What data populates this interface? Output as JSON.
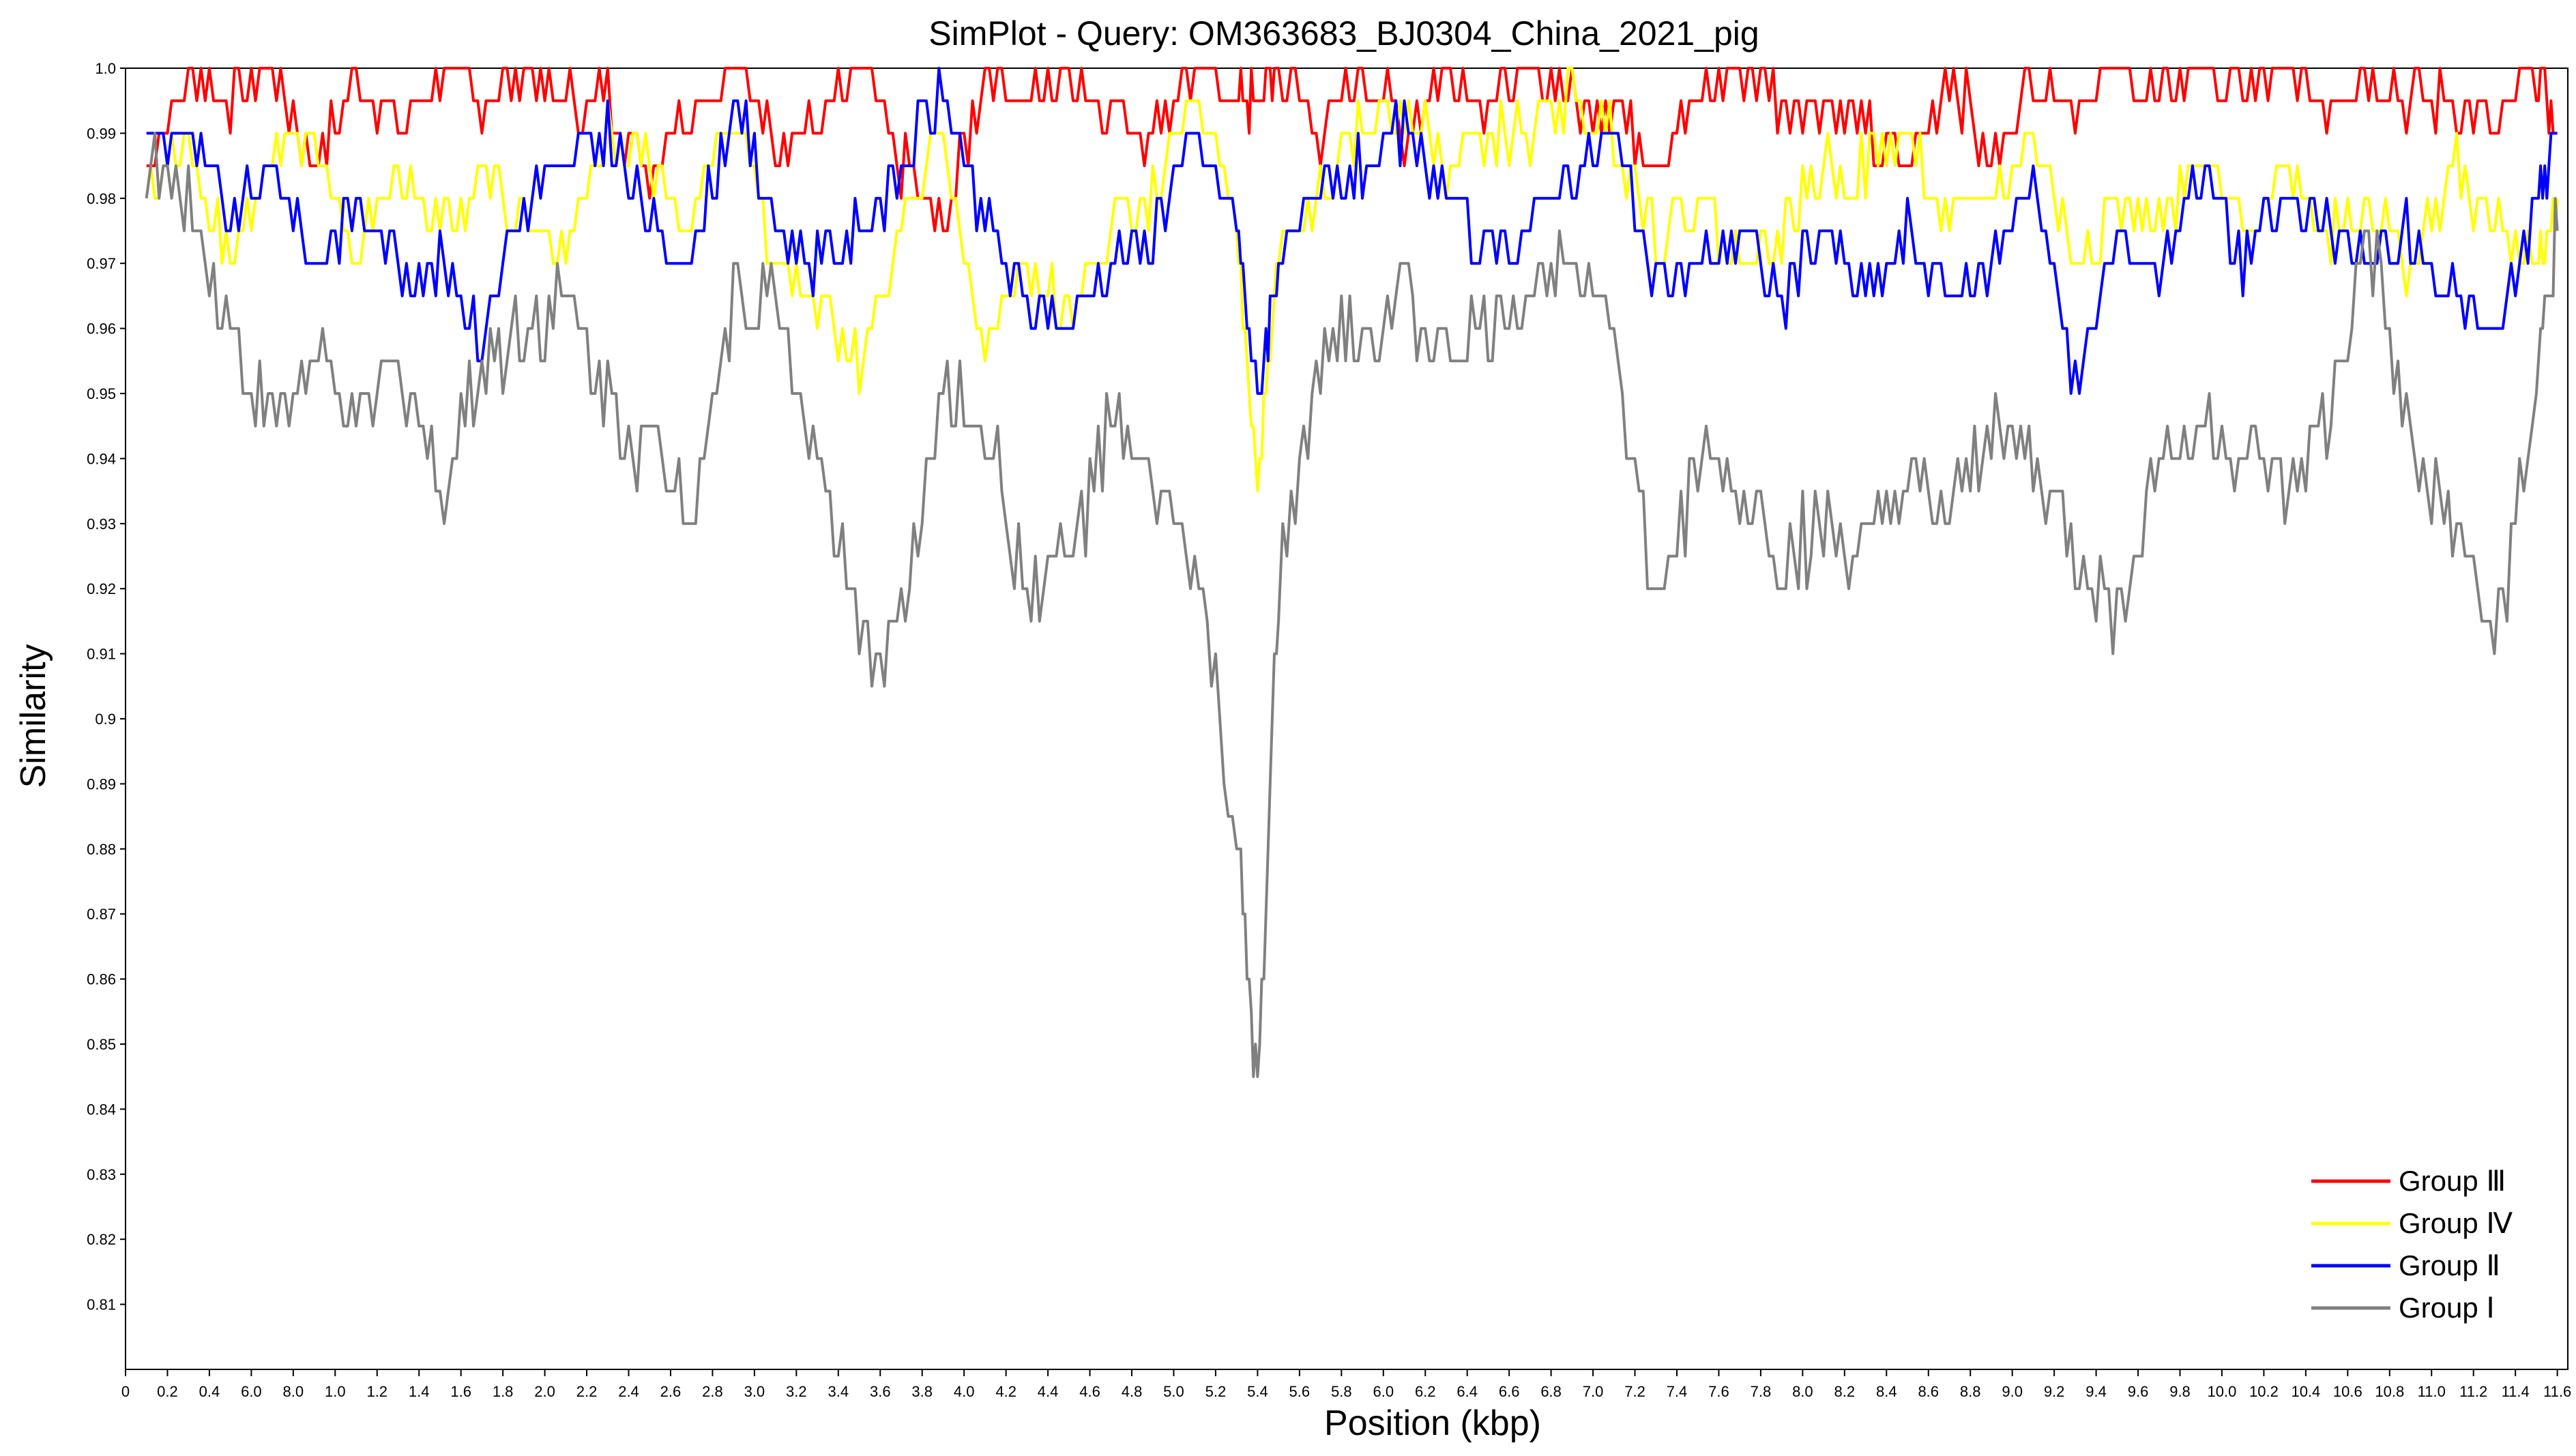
{
  "chart_data": {
    "type": "line",
    "title": "SimPlot - Query: OM363683_BJ0304_China_2021_pig",
    "xlabel": "Position (kbp)",
    "ylabel": "Similarity",
    "xlim": [
      0,
      11.65
    ],
    "ylim": [
      0.8,
      1.0
    ],
    "grid": false,
    "legend_position": "bottom-right",
    "x_tick_labels": [
      "0",
      "0.2",
      "0.4",
      "6.0",
      "8.0",
      "1.0",
      "1.2",
      "1.4",
      "1.6",
      "1.8",
      "2.0",
      "2.2",
      "2.4",
      "2.6",
      "2.8",
      "3.0",
      "3.2",
      "3.4",
      "3.6",
      "3.8",
      "4.0",
      "4.2",
      "4.4",
      "4.6",
      "4.8",
      "5.0",
      "5.2",
      "5.4",
      "5.6",
      "5.8",
      "6.0",
      "6.2",
      "6.4",
      "6.6",
      "6.8",
      "7.0",
      "7.2",
      "7.4",
      "7.6",
      "7.8",
      "8.0",
      "8.2",
      "8.4",
      "8.6",
      "8.8",
      "9.0",
      "9.2",
      "9.4",
      "9.6",
      "9.8",
      "10.0",
      "10.2",
      "10.4",
      "10.6",
      "10.8",
      "11.0",
      "11.2",
      "11.4",
      "11.6"
    ],
    "y_tick_labels": [
      "0.81",
      "0.82",
      "0.83",
      "0.84",
      "0.85",
      "0.86",
      "0.87",
      "0.88",
      "0.89",
      "0.9",
      "0.91",
      "0.92",
      "0.93",
      "0.94",
      "0.95",
      "0.96",
      "0.97",
      "0.98",
      "0.99",
      "1.0"
    ],
    "x": [
      0.1,
      0.3,
      0.5,
      0.7,
      0.9,
      1.1,
      1.3,
      1.5,
      1.7,
      1.9,
      2.1,
      2.3,
      2.5,
      2.7,
      2.9,
      3.1,
      3.3,
      3.5,
      3.7,
      3.9,
      4.1,
      4.3,
      4.5,
      4.7,
      4.9,
      5.1,
      5.3,
      5.4,
      5.5,
      5.7,
      5.9,
      6.1,
      6.3,
      6.5,
      6.7,
      6.9,
      7.1,
      7.3,
      7.5,
      7.7,
      7.9,
      8.1,
      8.3,
      8.5,
      8.7,
      8.9,
      9.1,
      9.3,
      9.5,
      9.7,
      9.9,
      10.1,
      10.3,
      10.5,
      10.7,
      10.9,
      11.1,
      11.3,
      11.5,
      11.6
    ],
    "series": [
      {
        "name": "Group Ⅲ",
        "color": "#ff0000",
        "values": [
          0.985,
          1.0,
          0.995,
          1.0,
          0.985,
          1.0,
          0.99,
          1.0,
          0.995,
          1.0,
          0.995,
          0.995,
          0.985,
          0.995,
          1.0,
          0.99,
          0.99,
          1.0,
          0.985,
          0.975,
          1.0,
          0.995,
          1.0,
          0.995,
          0.99,
          1.0,
          0.995,
          0.995,
          1.0,
          0.99,
          1.0,
          0.99,
          1.0,
          0.995,
          1.0,
          0.995,
          0.995,
          0.985,
          0.995,
          1.0,
          0.995,
          0.995,
          0.99,
          0.985,
          1.0,
          0.985,
          1.0,
          0.995,
          1.0,
          0.995,
          1.0,
          0.995,
          1.0,
          0.995,
          1.0,
          0.995,
          0.995,
          0.99,
          1.0,
          0.99
        ]
      },
      {
        "name": "Group Ⅳ",
        "color": "#ffff00",
        "values": [
          0.98,
          0.99,
          0.97,
          0.985,
          0.99,
          0.97,
          0.985,
          0.975,
          0.985,
          0.975,
          0.97,
          0.99,
          0.985,
          0.975,
          0.995,
          0.97,
          0.965,
          0.955,
          0.975,
          0.99,
          0.955,
          0.97,
          0.96,
          0.975,
          0.98,
          0.995,
          0.975,
          0.935,
          0.97,
          0.98,
          0.99,
          0.995,
          0.985,
          0.99,
          0.99,
          0.995,
          0.99,
          0.975,
          0.98,
          0.97,
          0.975,
          0.985,
          0.985,
          0.99,
          0.975,
          0.98,
          0.99,
          0.97,
          0.98,
          0.975,
          0.985,
          0.975,
          0.985,
          0.975,
          0.98,
          0.97,
          0.985,
          0.975,
          0.97,
          0.98
        ]
      },
      {
        "name": "Group Ⅱ",
        "color": "#0000ff",
        "values": [
          0.99,
          0.99,
          0.975,
          0.985,
          0.97,
          0.98,
          0.97,
          0.97,
          0.96,
          0.98,
          0.985,
          0.99,
          0.975,
          0.97,
          0.995,
          0.975,
          0.97,
          0.975,
          0.985,
          0.995,
          0.975,
          0.965,
          0.96,
          0.97,
          0.975,
          0.99,
          0.975,
          0.95,
          0.97,
          0.98,
          0.985,
          0.99,
          0.98,
          0.97,
          0.975,
          0.985,
          0.99,
          0.965,
          0.97,
          0.975,
          0.965,
          0.975,
          0.965,
          0.975,
          0.965,
          0.97,
          0.985,
          0.95,
          0.975,
          0.97,
          0.985,
          0.97,
          0.98,
          0.975,
          0.97,
          0.975,
          0.965,
          0.96,
          0.98,
          0.99
        ]
      },
      {
        "name": "Group Ⅰ",
        "color": "#808080",
        "values": [
          0.985,
          0.98,
          0.96,
          0.945,
          0.955,
          0.945,
          0.955,
          0.935,
          0.955,
          0.96,
          0.965,
          0.95,
          0.94,
          0.935,
          0.965,
          0.965,
          0.94,
          0.91,
          0.915,
          0.95,
          0.945,
          0.92,
          0.925,
          0.945,
          0.935,
          0.925,
          0.88,
          0.84,
          0.92,
          0.955,
          0.96,
          0.965,
          0.955,
          0.96,
          0.965,
          0.975,
          0.96,
          0.915,
          0.94,
          0.935,
          0.925,
          0.93,
          0.925,
          0.935,
          0.93,
          0.945,
          0.94,
          0.925,
          0.915,
          0.94,
          0.945,
          0.94,
          0.935,
          0.945,
          0.975,
          0.94,
          0.93,
          0.91,
          0.95,
          0.975
        ]
      }
    ]
  }
}
